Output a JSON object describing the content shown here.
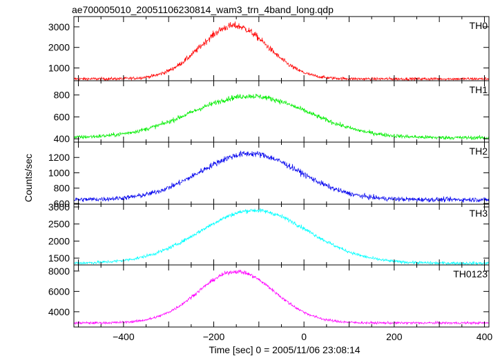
{
  "chart_data": {
    "type": "line",
    "title": "ae700005010_20051106230814_wam3_trn_4band_long.qdp",
    "xlabel": "Time [sec] 0 = 2005/11/06 23:08:14",
    "ylabel": "Counts/sec",
    "xlim": [
      -510,
      410
    ],
    "x_ticks": [
      -400,
      -200,
      0,
      200,
      400
    ],
    "x_tick_labels": [
      "−400",
      "−200",
      "0",
      "200",
      "400"
    ],
    "panels": [
      {
        "name": "TH0",
        "color": "#ff0000",
        "ylim": [
          380,
          3500
        ],
        "y_ticks": [
          1000,
          2000,
          3000
        ],
        "base": 470,
        "peak": 3050,
        "center": -155,
        "width": 75,
        "noise": 90,
        "series": [
          {
            "x": -500,
            "y": 470
          },
          {
            "x": -400,
            "y": 480
          },
          {
            "x": -300,
            "y": 680
          },
          {
            "x": -250,
            "y": 1250
          },
          {
            "x": -200,
            "y": 2300
          },
          {
            "x": -160,
            "y": 3050
          },
          {
            "x": -100,
            "y": 2550
          },
          {
            "x": -50,
            "y": 1600
          },
          {
            "x": 0,
            "y": 1050
          },
          {
            "x": 100,
            "y": 650
          },
          {
            "x": 200,
            "y": 530
          },
          {
            "x": 400,
            "y": 470
          }
        ]
      },
      {
        "name": "TH1",
        "color": "#00ee00",
        "ylim": [
          370,
          930
        ],
        "y_ticks": [
          400,
          600,
          800
        ],
        "base": 410,
        "peak": 790,
        "center": -120,
        "width": 130,
        "noise": 22,
        "series": [
          {
            "x": -500,
            "y": 430
          },
          {
            "x": -400,
            "y": 460
          },
          {
            "x": -300,
            "y": 560
          },
          {
            "x": -200,
            "y": 730
          },
          {
            "x": -150,
            "y": 780
          },
          {
            "x": -100,
            "y": 790
          },
          {
            "x": -50,
            "y": 760
          },
          {
            "x": 0,
            "y": 690
          },
          {
            "x": 100,
            "y": 540
          },
          {
            "x": 200,
            "y": 450
          },
          {
            "x": 400,
            "y": 420
          }
        ]
      },
      {
        "name": "TH2",
        "color": "#0000ee",
        "ylim": [
          590,
          1400
        ],
        "y_ticks": [
          600,
          800,
          1000,
          1200
        ],
        "base": 650,
        "peak": 1250,
        "center": -120,
        "width": 110,
        "noise": 38,
        "series": [
          {
            "x": -500,
            "y": 690
          },
          {
            "x": -400,
            "y": 720
          },
          {
            "x": -300,
            "y": 870
          },
          {
            "x": -200,
            "y": 1150
          },
          {
            "x": -120,
            "y": 1250
          },
          {
            "x": -50,
            "y": 1200
          },
          {
            "x": 0,
            "y": 1080
          },
          {
            "x": 100,
            "y": 830
          },
          {
            "x": 200,
            "y": 690
          },
          {
            "x": 400,
            "y": 650
          }
        ]
      },
      {
        "name": "TH3",
        "color": "#00ffff",
        "ylim": [
          1300,
          3080
        ],
        "y_ticks": [
          1500,
          2000,
          2500,
          3000
        ],
        "base": 1350,
        "peak": 2900,
        "center": -110,
        "width": 120,
        "noise": 55,
        "series": [
          {
            "x": -500,
            "y": 1400
          },
          {
            "x": -400,
            "y": 1460
          },
          {
            "x": -300,
            "y": 1830
          },
          {
            "x": -200,
            "y": 2650
          },
          {
            "x": -110,
            "y": 2900
          },
          {
            "x": 0,
            "y": 2550
          },
          {
            "x": 100,
            "y": 1850
          },
          {
            "x": 200,
            "y": 1500
          },
          {
            "x": 400,
            "y": 1380
          }
        ]
      },
      {
        "name": "TH0123",
        "color": "#ff00ff",
        "ylim": [
          2500,
          8600
        ],
        "y_ticks": [
          4000,
          6000,
          8000
        ],
        "base": 2900,
        "peak": 7950,
        "center": -150,
        "width": 85,
        "noise": 150,
        "series": [
          {
            "x": -500,
            "y": 2950
          },
          {
            "x": -400,
            "y": 3050
          },
          {
            "x": -300,
            "y": 3900
          },
          {
            "x": -200,
            "y": 7100
          },
          {
            "x": -150,
            "y": 7950
          },
          {
            "x": -100,
            "y": 7300
          },
          {
            "x": 0,
            "y": 4700
          },
          {
            "x": 100,
            "y": 3450
          },
          {
            "x": 200,
            "y": 3100
          },
          {
            "x": 400,
            "y": 2920
          }
        ]
      }
    ]
  }
}
